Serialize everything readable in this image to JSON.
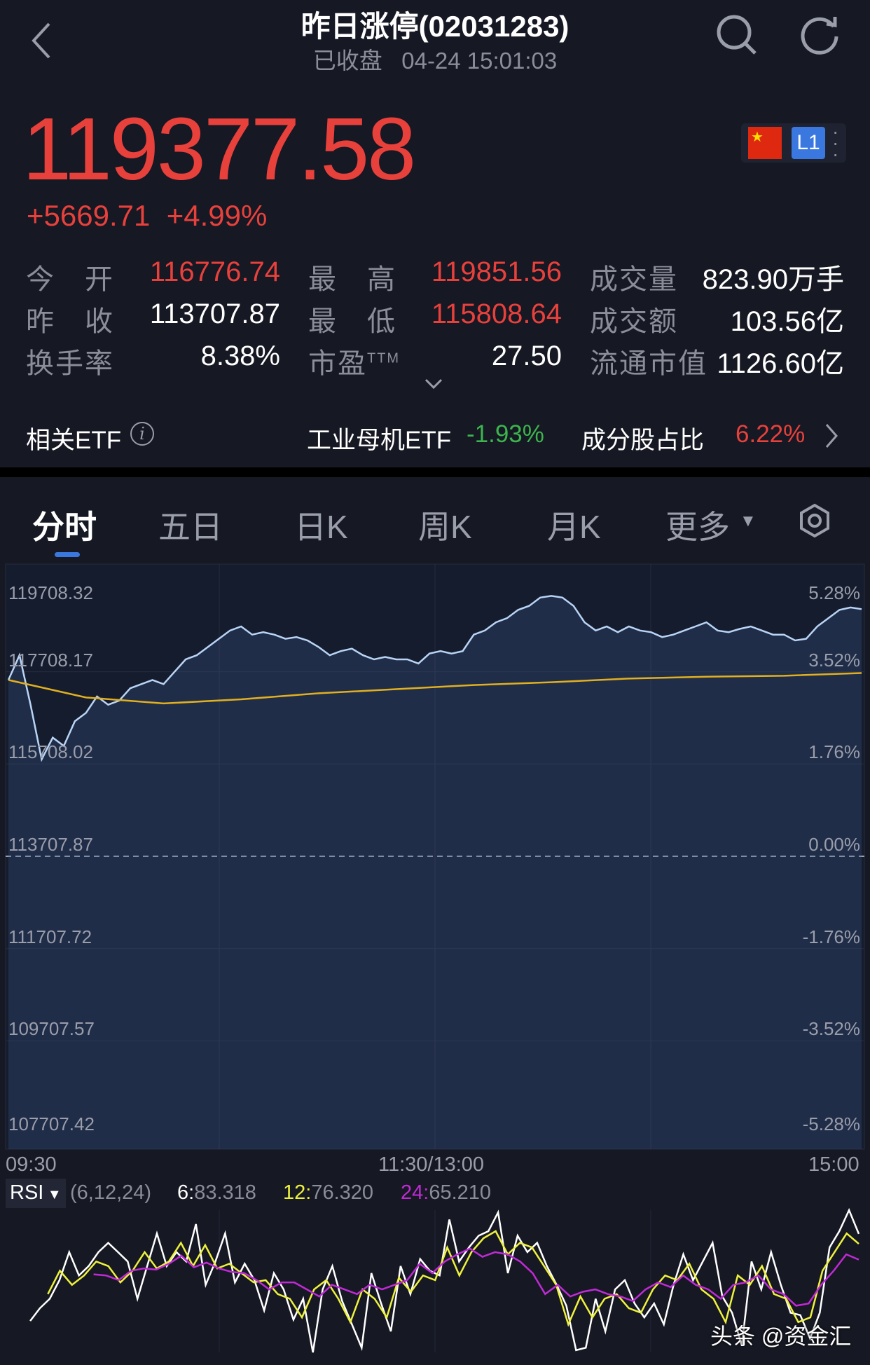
{
  "header": {
    "title": "昨日涨停(02031283)",
    "status": "已收盘",
    "datetime": "04-24 15:01:03"
  },
  "quote": {
    "price": "119377.58",
    "change": "+5669.71",
    "change_pct": "+4.99%",
    "badge": "L1",
    "stats": [
      {
        "label": "今　开",
        "value": "116776.74",
        "color": "red"
      },
      {
        "label": "最　高",
        "value": "119851.56",
        "color": "red"
      },
      {
        "label": "成交量",
        "value": "823.90万手",
        "color": "white"
      },
      {
        "label": "昨　收",
        "value": "113707.87",
        "color": "white"
      },
      {
        "label": "最　低",
        "value": "115808.64",
        "color": "red"
      },
      {
        "label": "成交额",
        "value": "103.56亿",
        "color": "white"
      },
      {
        "label": "换手率",
        "value": "8.38%",
        "color": "white"
      },
      {
        "label": "市盈",
        "sup": "TTM",
        "value": "27.50",
        "color": "white"
      },
      {
        "label": "流通市值",
        "value": "1126.60亿",
        "color": "white"
      }
    ]
  },
  "etf": {
    "label": "相关ETF",
    "name": "工业母机ETF",
    "pct": "-1.93%",
    "weight_label": "成分股占比",
    "weight": "6.22%"
  },
  "tabs": [
    "分时",
    "五日",
    "日K",
    "周K",
    "月K",
    "更多"
  ],
  "active_tab": 0,
  "colors": {
    "up": "#e8413c",
    "down": "#3cb54d",
    "price_line": "#b9d4f5",
    "avg_line": "#e0b020",
    "rsi6": "#ffffff",
    "rsi12": "#eef23c",
    "rsi24": "#c02ad6"
  },
  "chart_data": [
    {
      "type": "line",
      "title": "",
      "x_ticks": [
        "09:30",
        "11:30/13:00",
        "15:00"
      ],
      "y_ticks_left": [
        "119708.32",
        "117708.17",
        "115708.02",
        "113707.87",
        "111707.72",
        "109707.57",
        "107707.42"
      ],
      "y_ticks_right": [
        "5.28%",
        "3.52%",
        "1.76%",
        "0.00%",
        "-1.76%",
        "-3.52%",
        "-5.28%"
      ],
      "ylim": [
        107707.42,
        119708.32
      ],
      "prev_close": 113707.87,
      "series": [
        {
          "role": "price",
          "values": [
            117529,
            118065,
            116993,
            115809,
            116279,
            116100,
            116636,
            116815,
            117172,
            116993,
            117083,
            117350,
            117440,
            117529,
            117440,
            117708,
            117976,
            118065,
            118243,
            118422,
            118601,
            118690,
            118511,
            118565,
            118511,
            118422,
            118458,
            118386,
            118243,
            118065,
            118154,
            118208,
            118065,
            117976,
            118029,
            117976,
            117976,
            117886,
            118101,
            118154,
            118101,
            118154,
            118511,
            118601,
            118779,
            118869,
            119047,
            119136,
            119315,
            119351,
            119315,
            119136,
            118779,
            118601,
            118690,
            118565,
            118690,
            118601,
            118565,
            118458,
            118511,
            118601,
            118690,
            118779,
            118601,
            118565,
            118636,
            118690,
            118601,
            118511,
            118511,
            118386,
            118422,
            118690,
            118869,
            119047,
            119101,
            119065
          ]
        },
        {
          "role": "average",
          "values": [
            117529,
            117150,
            117020,
            117110,
            117240,
            117330,
            117420,
            117480,
            117560,
            117600,
            117620,
            117680
          ]
        }
      ]
    },
    {
      "type": "line",
      "title": "RSI",
      "params": "(6,12,24)",
      "ylim": [
        0,
        100
      ],
      "series": [
        {
          "name": "6",
          "last": "83.318",
          "start_minute": 5,
          "values": [
            22.1,
            31.1,
            37.7,
            50.8,
            70.5,
            54.1,
            60.7,
            70.5,
            77.0,
            70.5,
            63.9,
            37.7,
            60.7,
            83.6,
            60.7,
            70.5,
            63.9,
            90.2,
            47.5,
            63.9,
            83.6,
            49.2,
            62.3,
            50.8,
            29.5,
            55.7,
            44.3,
            23.0,
            37.7,
            0,
            44.3,
            60.7,
            36.1,
            19.7,
            3.3,
            55.7,
            34.4,
            14.8,
            60.7,
            41.0,
            65.6,
            57.4,
            54.1,
            93.4,
            63.9,
            73.8,
            82.0,
            85.2,
            98.4,
            55.7,
            82.0,
            70.5,
            77.0,
            60.7,
            47.5,
            32.8,
            1.6,
            3.3,
            37.7,
            14.8,
            44.3,
            50.8,
            34.4,
            24.6,
            34.4,
            19.7,
            47.5,
            68.9,
            50.8,
            63.9,
            77.0,
            39.3,
            27.9,
            4.9,
            63.9,
            44.3,
            70.5,
            47.5,
            27.9,
            26.2,
            9.8,
            27.9,
            73.8,
            85.2,
            100,
            83.3
          ]
        },
        {
          "name": "12",
          "last": "76.320",
          "start_minute": 10,
          "values": [
            41.0,
            57.4,
            47.5,
            54.1,
            63.9,
            60.7,
            49.2,
            57.4,
            70.5,
            59.0,
            63.9,
            77.0,
            60.7,
            75.4,
            59.0,
            62.3,
            55.7,
            49.2,
            50.8,
            41.0,
            37.7,
            24.6,
            44.3,
            50.8,
            37.7,
            21.3,
            44.3,
            37.7,
            24.6,
            52.5,
            42.6,
            54.1,
            50.8,
            73.8,
            54.1,
            70.5,
            80.3,
            85.2,
            68.9,
            77.0,
            73.8,
            60.7,
            47.5,
            19.7,
            39.3,
            24.6,
            37.7,
            41.0,
            31.1,
            27.9,
            44.3,
            54.1,
            50.8,
            62.3,
            44.3,
            37.7,
            21.3,
            54.1,
            47.5,
            60.7,
            41.0,
            37.7,
            21.3,
            24.6,
            57.4,
            70.5,
            83.6,
            76.32
          ]
        },
        {
          "name": "24",
          "last": "65.210",
          "start_minute": 23,
          "values": [
            54.9,
            54.1,
            50.8,
            57.4,
            59.0,
            58.2,
            62.3,
            68.0,
            59.8,
            63.1,
            59.0,
            56.6,
            55.7,
            50.8,
            44.3,
            49.2,
            49.2,
            44.3,
            39.3,
            47.5,
            44.3,
            41.0,
            47.5,
            44.3,
            47.5,
            50.8,
            62.3,
            55.7,
            63.9,
            68.9,
            73.0,
            67.2,
            70.5,
            68.9,
            63.9,
            55.7,
            41.0,
            47.5,
            39.3,
            42.6,
            44.3,
            41.0,
            39.3,
            36.1,
            44.3,
            49.2,
            45.9,
            54.1,
            47.5,
            44.3,
            37.7,
            47.5,
            49.2,
            54.1,
            44.3,
            41.0,
            32.8,
            34.4,
            47.5,
            57.4,
            68.9,
            65.21
          ]
        }
      ]
    }
  ],
  "watermark": "头条 @资金汇"
}
